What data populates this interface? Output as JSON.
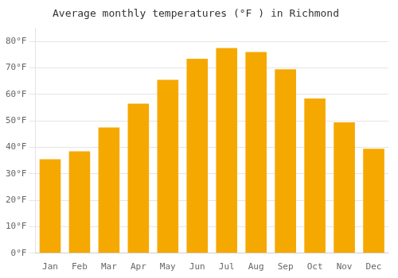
{
  "chart_data": {
    "type": "bar",
    "title": "Average monthly temperatures (°F ) in Richmond",
    "categories": [
      "Jan",
      "Feb",
      "Mar",
      "Apr",
      "May",
      "Jun",
      "Jul",
      "Aug",
      "Sep",
      "Oct",
      "Nov",
      "Dec"
    ],
    "values": [
      35.5,
      38.5,
      47.5,
      56.5,
      65.5,
      73.5,
      77.5,
      76.0,
      69.5,
      58.5,
      49.5,
      39.5
    ],
    "color": "#F5A800",
    "ylim": [
      0,
      85
    ],
    "yticks": [
      {
        "value": 0,
        "label": "0°F"
      },
      {
        "value": 10,
        "label": "10°F"
      },
      {
        "value": 20,
        "label": "20°F"
      },
      {
        "value": 30,
        "label": "30°F"
      },
      {
        "value": 40,
        "label": "40°F"
      },
      {
        "value": 50,
        "label": "50°F"
      },
      {
        "value": 60,
        "label": "60°F"
      },
      {
        "value": 70,
        "label": "70°F"
      },
      {
        "value": 80,
        "label": "80°F"
      }
    ],
    "grid": true
  }
}
